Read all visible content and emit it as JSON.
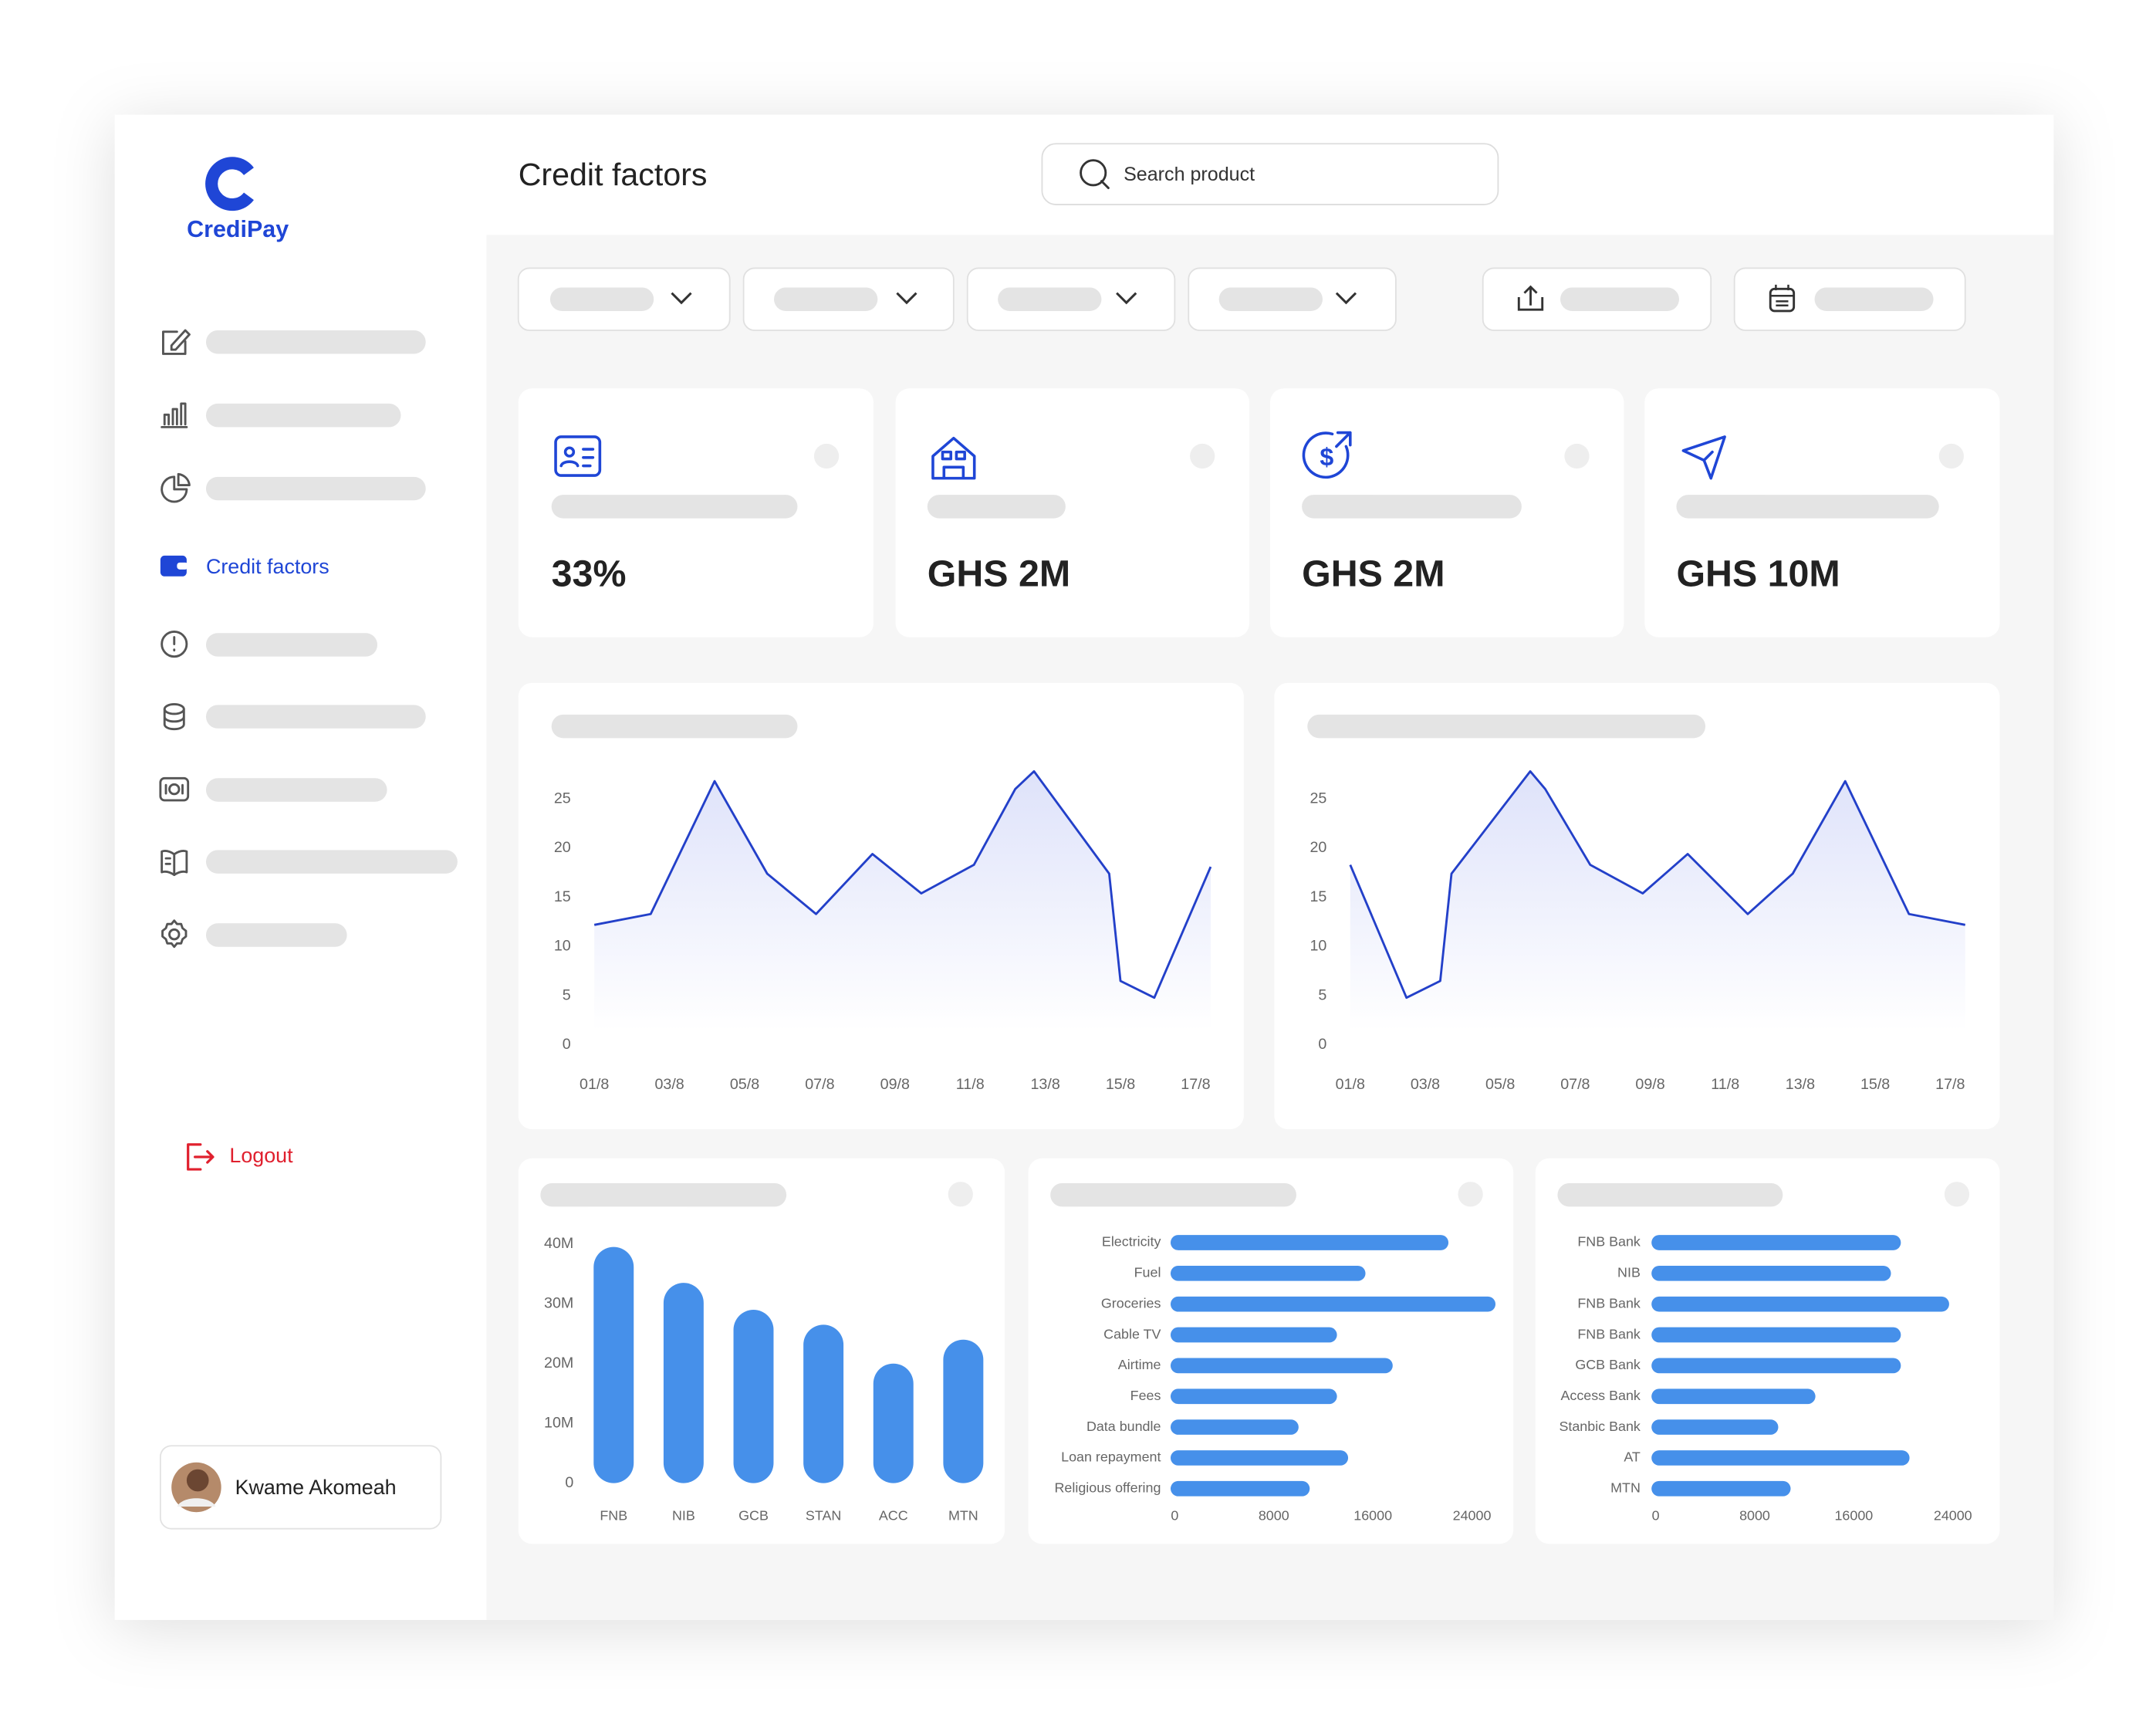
{
  "brand": "CrediPay",
  "header": {
    "title": "Credit factors",
    "search_placeholder": "Search product"
  },
  "nav": {
    "active": "Credit factors",
    "logout": "Logout"
  },
  "user": {
    "name": "Kwame Akomeah"
  },
  "kpis": [
    "33%",
    "GHS 2M",
    "GHS 2M",
    "GHS 10M"
  ],
  "chart_data": [
    {
      "type": "line",
      "color": "#2340c9",
      "x": [
        1.0,
        2.5,
        4.2,
        5.6,
        6.9,
        8.4,
        9.7,
        11.1,
        12.2,
        12.7,
        14.7,
        15.0,
        15.9,
        17.4
      ],
      "values": [
        12.2,
        13.3,
        26.8,
        17.4,
        13.3,
        19.4,
        15.4,
        18.3,
        26.0,
        27.8,
        17.4,
        6.5,
        4.8,
        18.1
      ],
      "xlim": [
        1,
        17.4
      ],
      "ylim": [
        0,
        28
      ],
      "xticks": [
        {
          "value": 1,
          "label": "01/8"
        },
        {
          "value": 3,
          "label": "03/8"
        },
        {
          "value": 5,
          "label": "05/8"
        },
        {
          "value": 7,
          "label": "07/8"
        },
        {
          "value": 9,
          "label": "09/8"
        },
        {
          "value": 11,
          "label": "11/8"
        },
        {
          "value": 13,
          "label": "13/8"
        },
        {
          "value": 15,
          "label": "15/8"
        },
        {
          "value": 17,
          "label": "17/8"
        }
      ],
      "yticks": [
        0,
        5,
        10,
        15,
        20,
        25
      ]
    },
    {
      "type": "line",
      "color": "#2340c9",
      "x": [
        1.0,
        2.5,
        3.4,
        3.7,
        5.8,
        6.2,
        7.4,
        8.8,
        10.0,
        11.6,
        12.8,
        14.2,
        15.9,
        17.4
      ],
      "values": [
        18.3,
        4.8,
        6.5,
        17.4,
        27.8,
        26.0,
        18.3,
        15.4,
        19.4,
        13.3,
        17.4,
        26.8,
        13.3,
        12.2
      ],
      "xlim": [
        1,
        17.4
      ],
      "ylim": [
        0,
        28
      ],
      "xticks": [
        {
          "value": 1,
          "label": "01/8"
        },
        {
          "value": 3,
          "label": "03/8"
        },
        {
          "value": 5,
          "label": "05/8"
        },
        {
          "value": 7,
          "label": "07/8"
        },
        {
          "value": 9,
          "label": "09/8"
        },
        {
          "value": 11,
          "label": "11/8"
        },
        {
          "value": 13,
          "label": "13/8"
        },
        {
          "value": 15,
          "label": "15/8"
        },
        {
          "value": 17,
          "label": "17/8"
        }
      ],
      "yticks": [
        0,
        5,
        10,
        15,
        20,
        25
      ]
    },
    {
      "type": "bar",
      "color": "#4690ea",
      "categories": [
        "FNB",
        "NIB",
        "GCB",
        "STAN",
        "ACC",
        "MTN"
      ],
      "values": [
        39500000,
        33500000,
        29000000,
        26500000,
        20000000,
        24000000
      ],
      "ylim": [
        0,
        40000000
      ],
      "yticks": [
        0,
        {
          "value": 10000000,
          "label": "10M"
        },
        {
          "value": 20000000,
          "label": "20M"
        },
        {
          "value": 30000000,
          "label": "30M"
        },
        {
          "value": 40000000,
          "label": "40M"
        }
      ]
    },
    {
      "type": "barh",
      "color": "#4690ea",
      "categories": [
        "Electricity",
        "Fuel",
        "Groceries",
        "Cable TV",
        "Airtime",
        "Fees",
        "Data bundle",
        "Loan repayment",
        "Religious offering"
      ],
      "values": [
        22100,
        15400,
        25900,
        13100,
        17600,
        13100,
        10000,
        14000,
        10900
      ],
      "xlim": [
        0,
        26000
      ],
      "xticks": [
        0,
        8000,
        16000,
        24000
      ]
    },
    {
      "type": "barh",
      "color": "#4690ea",
      "categories": [
        "FNB Bank",
        "NIB",
        "FNB Bank",
        "FNB Bank",
        "GCB Bank",
        "Access Bank",
        "Stanbic Bank",
        "AT",
        "MTN"
      ],
      "values": [
        19800,
        19000,
        23700,
        19800,
        19800,
        12900,
        9900,
        20500,
        10900
      ],
      "xlim": [
        0,
        26000
      ],
      "xticks": [
        0,
        8000,
        16000,
        24000
      ]
    }
  ]
}
